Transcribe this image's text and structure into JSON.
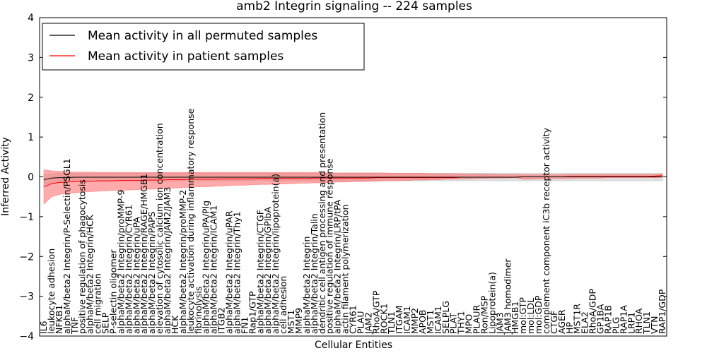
{
  "chart_data": {
    "type": "line",
    "title": "amb2 Integrin signaling -- 224 samples",
    "xlabel": "Cellular Entities",
    "ylabel": "Inferred Activity",
    "ylim": [
      -4,
      4
    ],
    "yticks": [
      -4,
      -3,
      -2,
      -1,
      0,
      1,
      2,
      3,
      4
    ],
    "grid": false,
    "legend_position": "top-left",
    "categories": [
      "IL6",
      "leukocyte adhesion",
      "NFKB1",
      "alphaM/beta2 Integrin/P-Selectin/PSGL1",
      "TNF",
      "positive regulation of phagocytosis",
      "alphaM/beta2 Integrin/HCK",
      "cell migration",
      "SELP",
      "P-selectin oligomer",
      "alphaM/beta2 Integrin/proMMP-9",
      "alphaM/beta2 Integrin/CYR61",
      "alphaM/beta2 Integrin/uPA",
      "alphaM/beta2 Integrin/RAGE/HMGB1",
      "alphaM/beta2 Integrin/PAPS",
      "elevation of cytosolic calcium ion concentration",
      "alphaM/beta2 Integrin/JAM2/JAM3",
      "HCK",
      "alphaM/beta2 Integrin/proMMP-2",
      "leukocyte activation during inflammatory response",
      "fibrinolysis",
      "alphaM/beta2 Integrin/uPA/Plg",
      "alphaM/beta2 Integrin/ICAM1",
      "ITGB2",
      "alphaM/beta2 Integrin/uPAR",
      "alphaM/beta2 Integrin/Thy1",
      "FN1",
      "Rap1/GTP",
      "alphaM/beta2 Integrin/CTGF",
      "alphaM/beta2 Integrin/GPIbA",
      "alphaM/beta2 Integrin/lipoprotein(a)",
      "cell adhesion",
      "MST1",
      "MMP9",
      "alphaM/beta2 Integrin",
      "alphaM/beta2 Integrin/Talin",
      "dendritic cell antigen processing and presentation",
      "positive regulation of immune response",
      "alphaM/beta2 Integrin/LRP/tPA",
      "actin filament polymerization",
      "CYR61",
      "PLAU",
      "JAM2",
      "RhoA/GTP",
      "ROCK1",
      "TLN1",
      "ITGAM",
      "ICAM1",
      "MMP2",
      "APOB",
      "MST1",
      "ICAM1",
      "SELPLG",
      "PLAT",
      "THY1",
      "MPO",
      "PLAUR",
      "Ron/MSP",
      "Lipoprotein(a)",
      "JAM3",
      "JAM3 homodimer",
      "HMGB1",
      "mol:GTP",
      "mol:LDL",
      "mol:GDP",
      "complement component iC3b receptor activity",
      "CTGF",
      "AGER",
      "HP",
      "MST1R",
      "ELA2",
      "RhoA/GDP",
      "GP1BA",
      "RAP1B",
      "PLG",
      "RAP1A",
      "LRP1",
      "RHOA",
      "TLN1",
      "VTN",
      "RAP1/GDP"
    ],
    "series": [
      {
        "name": "Mean activity in all permuted samples",
        "color": "#000000",
        "values": [
          -0.07,
          -0.03,
          -0.02,
          -0.02,
          -0.01,
          -0.01,
          -0.01,
          -0.01,
          -0.01,
          -0.01,
          -0.01,
          -0.01,
          -0.01,
          -0.01,
          -0.01,
          -0.01,
          -0.01,
          -0.01,
          -0.01,
          -0.01,
          -0.01,
          -0.01,
          -0.01,
          -0.01,
          -0.01,
          -0.01,
          -0.01,
          -0.01,
          -0.01,
          -0.01,
          -0.01,
          -0.01,
          -0.01,
          -0.01,
          -0.01,
          -0.01,
          -0.01,
          -0.01,
          -0.01,
          -0.01,
          -0.01,
          -0.01,
          -0.01,
          -0.01,
          -0.01,
          -0.01,
          -0.01,
          -0.01,
          -0.01,
          -0.01,
          -0.01,
          -0.01,
          -0.01,
          -0.01,
          -0.01,
          -0.01,
          -0.01,
          -0.01,
          -0.01,
          -0.01,
          -0.01,
          -0.01,
          0.0,
          0.0,
          0.0,
          0.0,
          0.0,
          0.0,
          0.0,
          0.0,
          0.0,
          0.0,
          0.0,
          0.0,
          0.0,
          0.0,
          0.0,
          0.0,
          0.0,
          0.0,
          0.0
        ],
        "band_low": [
          -0.2,
          -0.16,
          -0.14,
          -0.13,
          -0.12,
          -0.12,
          -0.12,
          -0.11,
          -0.11,
          -0.11,
          -0.11,
          -0.11,
          -0.11,
          -0.11,
          -0.11,
          -0.11,
          -0.11,
          -0.1,
          -0.1,
          -0.1,
          -0.1,
          -0.1,
          -0.1,
          -0.1,
          -0.1,
          -0.1,
          -0.1,
          -0.1,
          -0.1,
          -0.1,
          -0.1,
          -0.1,
          -0.1,
          -0.1,
          -0.1,
          -0.1,
          -0.1,
          -0.1,
          -0.1,
          -0.1,
          -0.1,
          -0.1,
          -0.1,
          -0.1,
          -0.1,
          -0.1,
          -0.1,
          -0.1,
          -0.1,
          -0.1,
          -0.1,
          -0.1,
          -0.1,
          -0.1,
          -0.1,
          -0.1,
          -0.1,
          -0.1,
          -0.1,
          -0.1,
          -0.1,
          -0.1,
          -0.1,
          -0.1,
          -0.1,
          -0.1,
          -0.1,
          -0.1,
          -0.1,
          -0.1,
          -0.1,
          -0.1,
          -0.1,
          -0.1,
          -0.1,
          -0.1,
          -0.1,
          -0.1,
          -0.1,
          -0.1,
          -0.1
        ],
        "band_high": [
          0.05,
          0.08,
          0.09,
          0.09,
          0.09,
          0.09,
          0.09,
          0.09,
          0.09,
          0.09,
          0.09,
          0.09,
          0.09,
          0.09,
          0.09,
          0.09,
          0.09,
          0.09,
          0.09,
          0.09,
          0.09,
          0.09,
          0.09,
          0.09,
          0.09,
          0.09,
          0.09,
          0.09,
          0.09,
          0.09,
          0.09,
          0.09,
          0.09,
          0.09,
          0.09,
          0.09,
          0.09,
          0.09,
          0.09,
          0.09,
          0.09,
          0.09,
          0.09,
          0.09,
          0.09,
          0.09,
          0.09,
          0.09,
          0.09,
          0.09,
          0.09,
          0.09,
          0.09,
          0.09,
          0.09,
          0.09,
          0.09,
          0.09,
          0.09,
          0.09,
          0.09,
          0.09,
          0.09,
          0.09,
          0.09,
          0.09,
          0.09,
          0.09,
          0.09,
          0.09,
          0.09,
          0.09,
          0.09,
          0.09,
          0.09,
          0.09,
          0.09,
          0.09,
          0.09,
          0.09,
          0.09
        ],
        "band_color": "#bbbbbb"
      },
      {
        "name": "Mean activity in patient samples",
        "color": "#ff0000",
        "values": [
          -0.25,
          -0.17,
          -0.14,
          -0.13,
          -0.12,
          -0.11,
          -0.11,
          -0.1,
          -0.1,
          -0.1,
          -0.09,
          -0.09,
          -0.09,
          -0.08,
          -0.08,
          -0.08,
          -0.07,
          -0.07,
          -0.07,
          -0.06,
          -0.06,
          -0.06,
          -0.06,
          -0.05,
          -0.05,
          -0.05,
          -0.05,
          -0.05,
          -0.04,
          -0.04,
          -0.04,
          -0.04,
          -0.04,
          -0.04,
          -0.04,
          -0.03,
          -0.03,
          -0.03,
          -0.03,
          -0.03,
          -0.03,
          -0.03,
          -0.03,
          -0.02,
          -0.02,
          -0.02,
          -0.02,
          -0.02,
          -0.02,
          -0.02,
          -0.02,
          -0.02,
          -0.02,
          -0.02,
          -0.01,
          -0.01,
          -0.01,
          -0.01,
          -0.01,
          -0.01,
          -0.01,
          -0.01,
          0.0,
          0.0,
          0.0,
          0.0,
          0.0,
          0.0,
          0.01,
          0.01,
          0.01,
          0.01,
          0.01,
          0.01,
          0.01,
          0.01,
          0.01,
          0.01,
          0.01,
          0.02,
          0.03
        ],
        "band_low": [
          -0.68,
          -0.5,
          -0.44,
          -0.42,
          -0.4,
          -0.38,
          -0.37,
          -0.36,
          -0.35,
          -0.34,
          -0.34,
          -0.33,
          -0.32,
          -0.31,
          -0.31,
          -0.3,
          -0.29,
          -0.28,
          -0.27,
          -0.26,
          -0.25,
          -0.25,
          -0.24,
          -0.23,
          -0.22,
          -0.21,
          -0.21,
          -0.2,
          -0.19,
          -0.19,
          -0.18,
          -0.18,
          -0.17,
          -0.16,
          -0.16,
          -0.15,
          -0.15,
          -0.14,
          -0.13,
          -0.13,
          -0.12,
          -0.12,
          -0.11,
          -0.11,
          -0.1,
          -0.1,
          -0.09,
          -0.09,
          -0.08,
          -0.08,
          -0.07,
          -0.07,
          -0.06,
          -0.06,
          -0.05,
          -0.05,
          -0.04,
          -0.04,
          -0.03,
          -0.03,
          -0.03,
          -0.02,
          -0.06,
          -0.06,
          -0.05,
          -0.05,
          -0.04,
          -0.04,
          -0.04,
          -0.03,
          -0.03,
          -0.03,
          -0.03,
          -0.02,
          -0.02,
          -0.02,
          -0.02,
          -0.02,
          -0.02,
          -0.02,
          -0.01
        ],
        "band_high": [
          0.18,
          0.15,
          0.14,
          0.13,
          0.12,
          0.12,
          0.12,
          0.11,
          0.11,
          0.11,
          0.11,
          0.11,
          0.11,
          0.11,
          0.11,
          0.11,
          0.11,
          0.11,
          0.11,
          0.11,
          0.11,
          0.11,
          0.11,
          0.11,
          0.11,
          0.11,
          0.11,
          0.11,
          0.11,
          0.11,
          0.11,
          0.11,
          0.11,
          0.11,
          0.11,
          0.11,
          0.1,
          0.1,
          0.1,
          0.1,
          0.1,
          0.1,
          0.1,
          0.1,
          0.1,
          0.09,
          0.09,
          0.09,
          0.09,
          0.09,
          0.08,
          0.08,
          0.08,
          0.08,
          0.07,
          0.07,
          0.07,
          0.07,
          0.06,
          0.06,
          0.06,
          0.06,
          0.05,
          0.05,
          0.05,
          0.05,
          0.05,
          0.05,
          0.06,
          0.06,
          0.06,
          0.06,
          0.06,
          0.06,
          0.06,
          0.06,
          0.06,
          0.06,
          0.06,
          0.06,
          0.07
        ],
        "band_color": "#ff6666"
      }
    ]
  }
}
